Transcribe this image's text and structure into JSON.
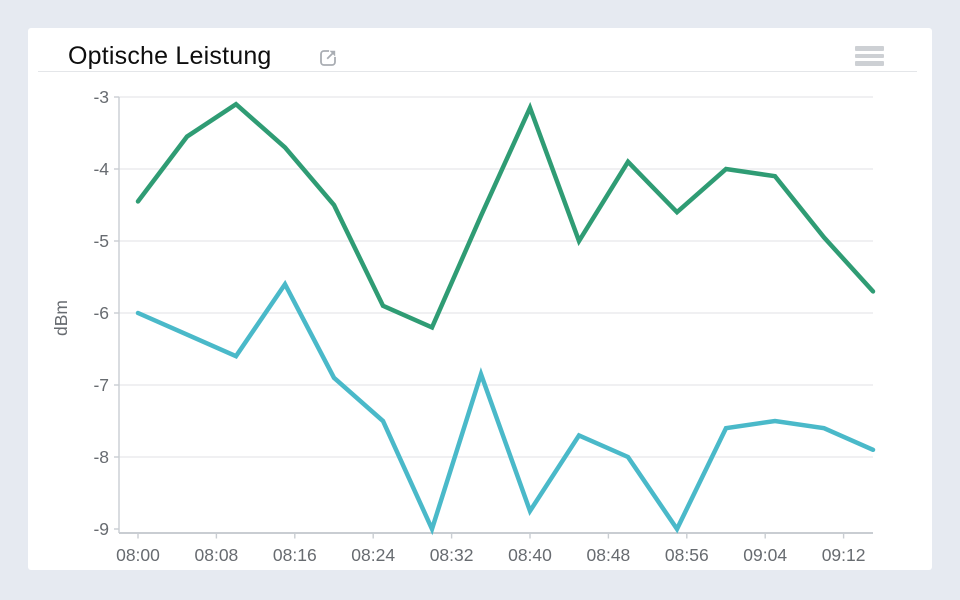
{
  "page": {
    "background_color": "#e6eaf1",
    "card_color": "#ffffff"
  },
  "header": {
    "title": "Optische Leistung",
    "icons": [
      "open-in-new-icon",
      "hamburger-menu-icon"
    ]
  },
  "chart_data": {
    "type": "line",
    "title": "Optische Leistung",
    "xlabel": "",
    "ylabel": "dBm",
    "ylim": [
      -9,
      -3
    ],
    "y_ticks": [
      -3,
      -4,
      -5,
      -6,
      -7,
      -8,
      -9
    ],
    "x_tick_labels": [
      "08:00",
      "08:08",
      "08:16",
      "08:24",
      "08:32",
      "08:40",
      "08:48",
      "08:56",
      "09:04",
      "09:12"
    ],
    "grid": "horizontal-only",
    "legend": false,
    "x": [
      "08:00",
      "08:05",
      "08:10",
      "08:15",
      "08:20",
      "08:25",
      "08:30",
      "08:35",
      "08:40",
      "08:45",
      "08:50",
      "08:55",
      "09:00",
      "09:05",
      "09:10",
      "09:15"
    ],
    "series": [
      {
        "name": "",
        "color": "#2f9c74",
        "values": [
          -4.45,
          -3.55,
          -3.1,
          -3.7,
          -4.5,
          -5.9,
          -6.2,
          -4.65,
          -3.15,
          -5.0,
          -3.9,
          -4.6,
          -4.0,
          -4.1,
          -4.95,
          -5.7
        ]
      },
      {
        "name": "",
        "color": "#4ab9c9",
        "values": [
          -6.0,
          -6.3,
          -6.6,
          -5.6,
          -6.9,
          -7.5,
          -9.0,
          -6.85,
          -8.75,
          -7.7,
          -8.0,
          -9.0,
          -7.6,
          -7.5,
          -7.6,
          -7.9
        ]
      }
    ],
    "axis_label_color": "#676b70",
    "gridline_color": "#ececee",
    "axis_line_color": "#c9cdd2"
  }
}
